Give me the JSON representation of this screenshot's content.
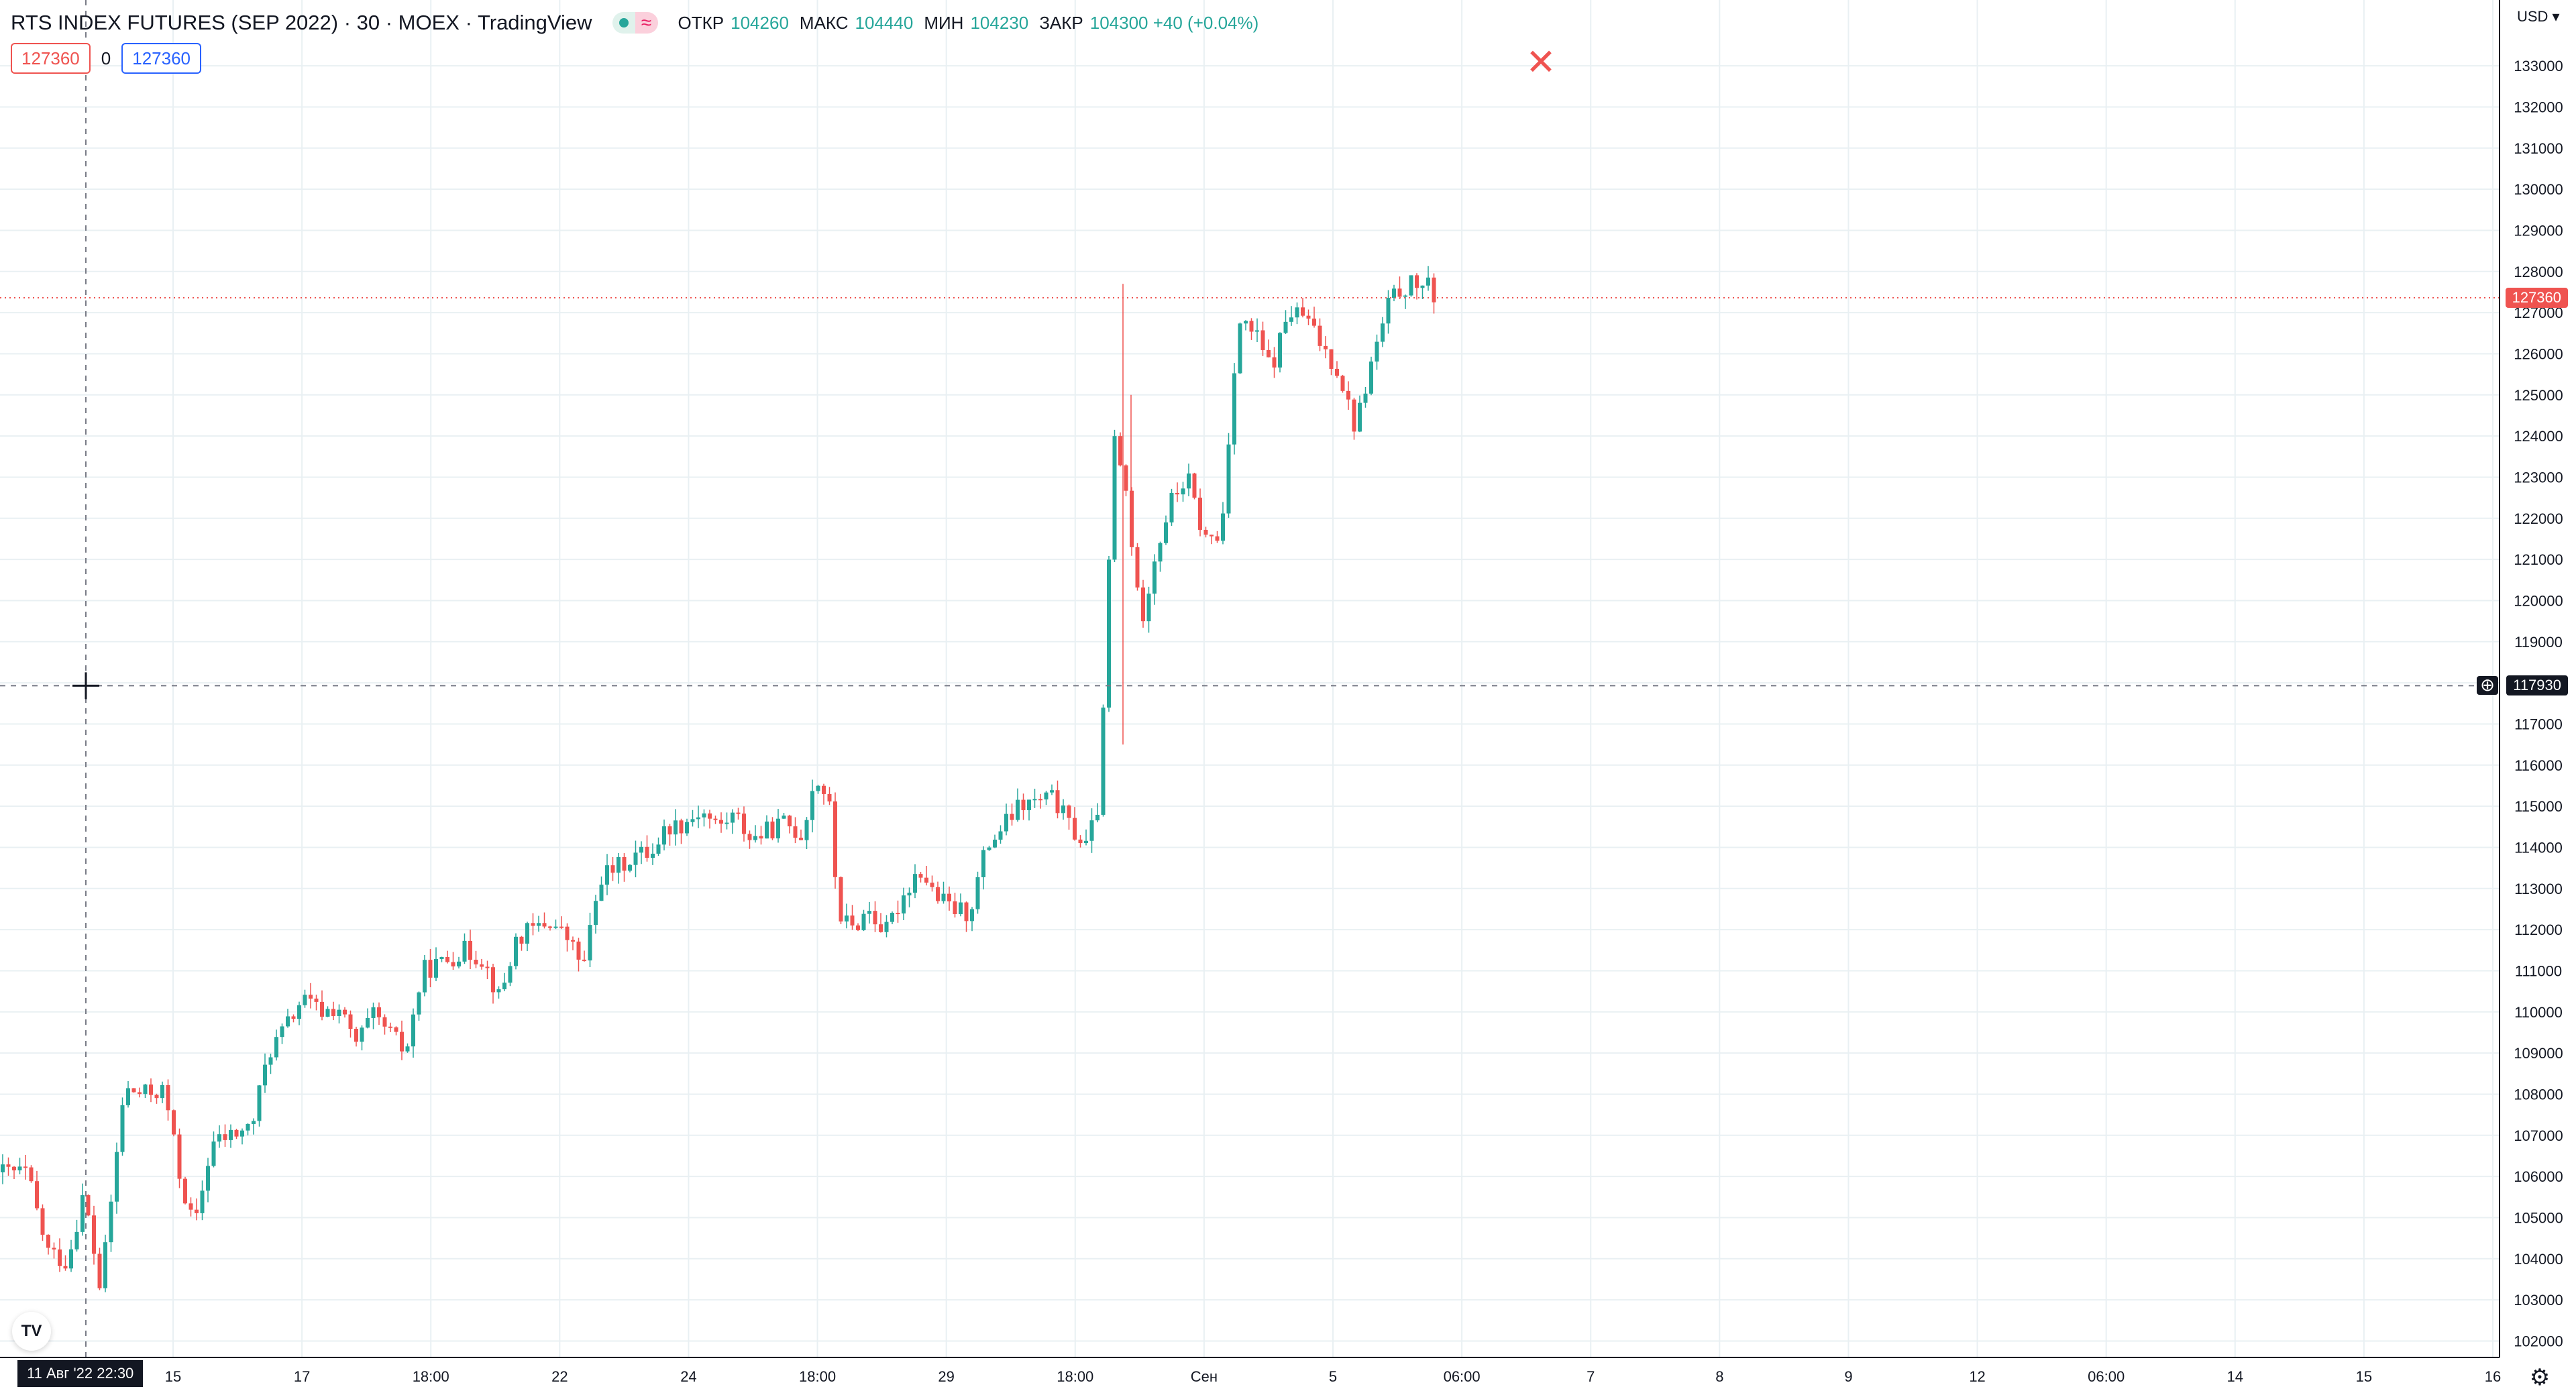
{
  "header": {
    "symbol": "RTS INDEX FUTURES (SEP 2022) · 30 · MOEX · TradingView",
    "ohlc": [
      {
        "label": "ОТКР",
        "value": "104260"
      },
      {
        "label": "МАКС",
        "value": "104440"
      },
      {
        "label": "МИН",
        "value": "104230"
      },
      {
        "label": "ЗАКР",
        "value": "104300 +40 (+0.04%)"
      }
    ],
    "status_wave_glyph": "≈"
  },
  "trade": {
    "sell_price": "127360",
    "spread": "0",
    "buy_price": "127360"
  },
  "currency": "USD ▾",
  "current_price_label": "127360",
  "cursor_price_label": "117930",
  "date_badge": "11 Авг '22   22:30",
  "close_icon_glyph": "✕",
  "logo_text": "TV",
  "icons": {
    "close": "close-icon",
    "settings": "gear-icon",
    "add_alert": "plus-circle-icon",
    "crosshair": "crosshair-icon",
    "logo": "tradingview-logo-icon"
  },
  "colors": {
    "up": "#26a69a",
    "down": "#ef5350",
    "grid": "#e9f0f3",
    "axis": "#131722",
    "price_line": "#ef5350"
  },
  "chart_data": {
    "type": "candlestick",
    "title": "RTS INDEX FUTURES (SEP 2022) · 30 · MOEX · TradingView",
    "ylim": [
      101600,
      134600
    ],
    "y_ticks": [
      102000,
      103000,
      104000,
      105000,
      106000,
      107000,
      108000,
      109000,
      110000,
      111000,
      112000,
      113000,
      114000,
      115000,
      116000,
      117000,
      118000,
      119000,
      120000,
      121000,
      122000,
      123000,
      124000,
      125000,
      126000,
      127000,
      128000,
      129000,
      130000,
      131000,
      132000,
      133000
    ],
    "x_ticks": [
      "15",
      "17",
      "18:00",
      "22",
      "24",
      "18:00",
      "29",
      "18:00",
      "Сен",
      "5",
      "06:00",
      "7",
      "8",
      "9",
      "12",
      "06:00",
      "14",
      "15",
      "16"
    ],
    "close_path": [
      [
        0,
        106100
      ],
      [
        40,
        106100
      ],
      [
        70,
        104200
      ],
      [
        100,
        103900
      ],
      [
        125,
        105600
      ],
      [
        150,
        103200
      ],
      [
        185,
        108100
      ],
      [
        215,
        108000
      ],
      [
        245,
        108100
      ],
      [
        268,
        106000
      ],
      [
        290,
        104700
      ],
      [
        315,
        106800
      ],
      [
        345,
        107000
      ],
      [
        375,
        107200
      ],
      [
        400,
        109000
      ],
      [
        425,
        109600
      ],
      [
        450,
        110300
      ],
      [
        480,
        110000
      ],
      [
        505,
        110100
      ],
      [
        530,
        109200
      ],
      [
        555,
        109900
      ],
      [
        580,
        109500
      ],
      [
        605,
        109000
      ],
      [
        630,
        111000
      ],
      [
        660,
        111200
      ],
      [
        690,
        111500
      ],
      [
        720,
        111300
      ],
      [
        745,
        110300
      ],
      [
        770,
        111800
      ],
      [
        795,
        112000
      ],
      [
        820,
        112200
      ],
      [
        845,
        111800
      ],
      [
        870,
        111100
      ],
      [
        895,
        113300
      ],
      [
        920,
        113500
      ],
      [
        945,
        113800
      ],
      [
        970,
        113900
      ],
      [
        995,
        114500
      ],
      [
        1020,
        114600
      ],
      [
        1045,
        114900
      ],
      [
        1070,
        114500
      ],
      [
        1095,
        114800
      ],
      [
        1120,
        114200
      ],
      [
        1145,
        114400
      ],
      [
        1170,
        114600
      ],
      [
        1195,
        114300
      ],
      [
        1215,
        115700
      ],
      [
        1235,
        115200
      ],
      [
        1250,
        112400
      ],
      [
        1270,
        112000
      ],
      [
        1295,
        112500
      ],
      [
        1320,
        111900
      ],
      [
        1345,
        112800
      ],
      [
        1370,
        113500
      ],
      [
        1395,
        112800
      ],
      [
        1420,
        112500
      ],
      [
        1445,
        112400
      ],
      [
        1470,
        114000
      ],
      [
        1495,
        114500
      ],
      [
        1520,
        115000
      ],
      [
        1545,
        115100
      ],
      [
        1570,
        115200
      ],
      [
        1595,
        114500
      ],
      [
        1620,
        114000
      ],
      [
        1640,
        115200
      ],
      [
        1660,
        124000
      ],
      [
        1680,
        122500
      ],
      [
        1700,
        119400
      ],
      [
        1720,
        121000
      ],
      [
        1745,
        122400
      ],
      [
        1770,
        123000
      ],
      [
        1795,
        121500
      ],
      [
        1820,
        121500
      ],
      [
        1845,
        126800
      ],
      [
        1870,
        126500
      ],
      [
        1895,
        125600
      ],
      [
        1920,
        127000
      ],
      [
        1945,
        126900
      ],
      [
        1970,
        126200
      ],
      [
        1995,
        125600
      ],
      [
        2020,
        124200
      ],
      [
        2045,
        125800
      ],
      [
        2070,
        127200
      ],
      [
        2090,
        127600
      ],
      [
        2110,
        127700
      ],
      [
        2130,
        127600
      ],
      [
        2140,
        127360
      ]
    ],
    "last_price": 127360,
    "cursor_price": 117930,
    "cursor_time": "11 Авг '22 22:30",
    "grid": true
  }
}
